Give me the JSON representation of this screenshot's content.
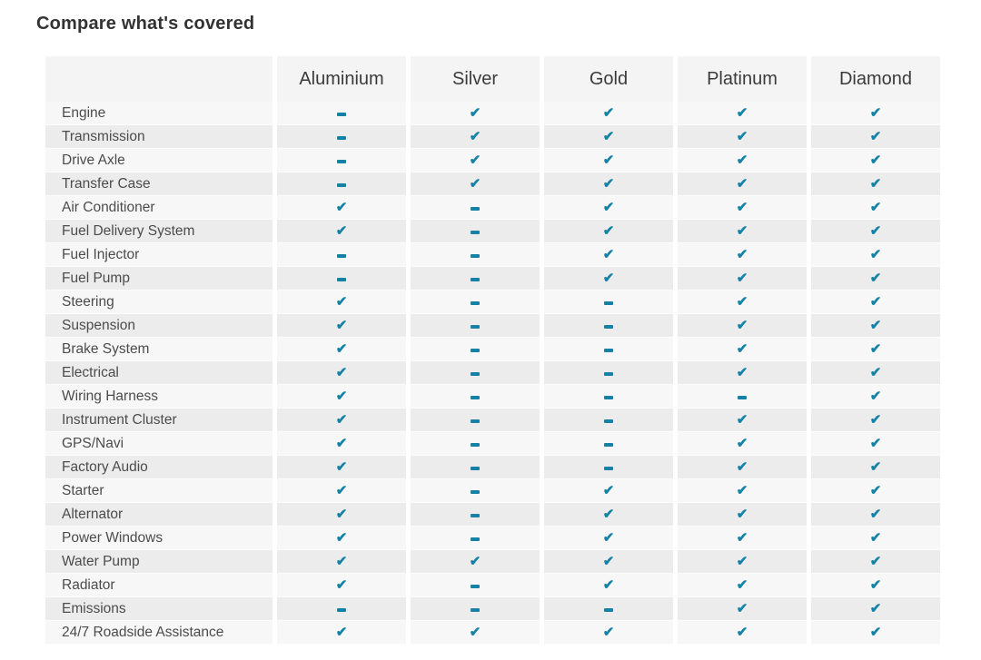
{
  "page_title": "Compare what's covered",
  "colors": {
    "accent": "#1482a5",
    "row_odd": "#f7f7f7",
    "row_even": "#ececec",
    "header_bg": "#f4f4f4",
    "title_text": "#333333"
  },
  "table": {
    "columns": [
      "Aluminium",
      "Silver",
      "Gold",
      "Platinum",
      "Diamond"
    ],
    "mark_glyphs": {
      "check": "✔",
      "dash": "–"
    },
    "rows": [
      {
        "label": "Engine",
        "marks": [
          "dash",
          "check",
          "check",
          "check",
          "check"
        ]
      },
      {
        "label": "Transmission",
        "marks": [
          "dash",
          "check",
          "check",
          "check",
          "check"
        ]
      },
      {
        "label": "Drive Axle",
        "marks": [
          "dash",
          "check",
          "check",
          "check",
          "check"
        ]
      },
      {
        "label": "Transfer Case",
        "marks": [
          "dash",
          "check",
          "check",
          "check",
          "check"
        ]
      },
      {
        "label": "Air Conditioner",
        "marks": [
          "check",
          "dash",
          "check",
          "check",
          "check"
        ]
      },
      {
        "label": "Fuel Delivery System",
        "marks": [
          "check",
          "dash",
          "check",
          "check",
          "check"
        ]
      },
      {
        "label": "Fuel Injector",
        "marks": [
          "dash",
          "dash",
          "check",
          "check",
          "check"
        ]
      },
      {
        "label": "Fuel Pump",
        "marks": [
          "dash",
          "dash",
          "check",
          "check",
          "check"
        ]
      },
      {
        "label": "Steering",
        "marks": [
          "check",
          "dash",
          "dash",
          "check",
          "check"
        ]
      },
      {
        "label": "Suspension",
        "marks": [
          "check",
          "dash",
          "dash",
          "check",
          "check"
        ]
      },
      {
        "label": "Brake System",
        "marks": [
          "check",
          "dash",
          "dash",
          "check",
          "check"
        ]
      },
      {
        "label": "Electrical",
        "marks": [
          "check",
          "dash",
          "dash",
          "check",
          "check"
        ]
      },
      {
        "label": "Wiring Harness",
        "marks": [
          "check",
          "dash",
          "dash",
          "dash",
          "check"
        ]
      },
      {
        "label": "Instrument Cluster",
        "marks": [
          "check",
          "dash",
          "dash",
          "check",
          "check"
        ]
      },
      {
        "label": "GPS/Navi",
        "marks": [
          "check",
          "dash",
          "dash",
          "check",
          "check"
        ]
      },
      {
        "label": "Factory Audio",
        "marks": [
          "check",
          "dash",
          "dash",
          "check",
          "check"
        ]
      },
      {
        "label": "Starter",
        "marks": [
          "check",
          "dash",
          "check",
          "check",
          "check"
        ]
      },
      {
        "label": "Alternator",
        "marks": [
          "check",
          "dash",
          "check",
          "check",
          "check"
        ]
      },
      {
        "label": "Power Windows",
        "marks": [
          "check",
          "dash",
          "check",
          "check",
          "check"
        ]
      },
      {
        "label": "Water Pump",
        "marks": [
          "check",
          "check",
          "check",
          "check",
          "check"
        ]
      },
      {
        "label": "Radiator",
        "marks": [
          "check",
          "dash",
          "check",
          "check",
          "check"
        ]
      },
      {
        "label": "Emissions",
        "marks": [
          "dash",
          "dash",
          "dash",
          "check",
          "check"
        ]
      },
      {
        "label": "24/7 Roadside Assistance",
        "marks": [
          "check",
          "check",
          "check",
          "check",
          "check"
        ]
      }
    ]
  }
}
